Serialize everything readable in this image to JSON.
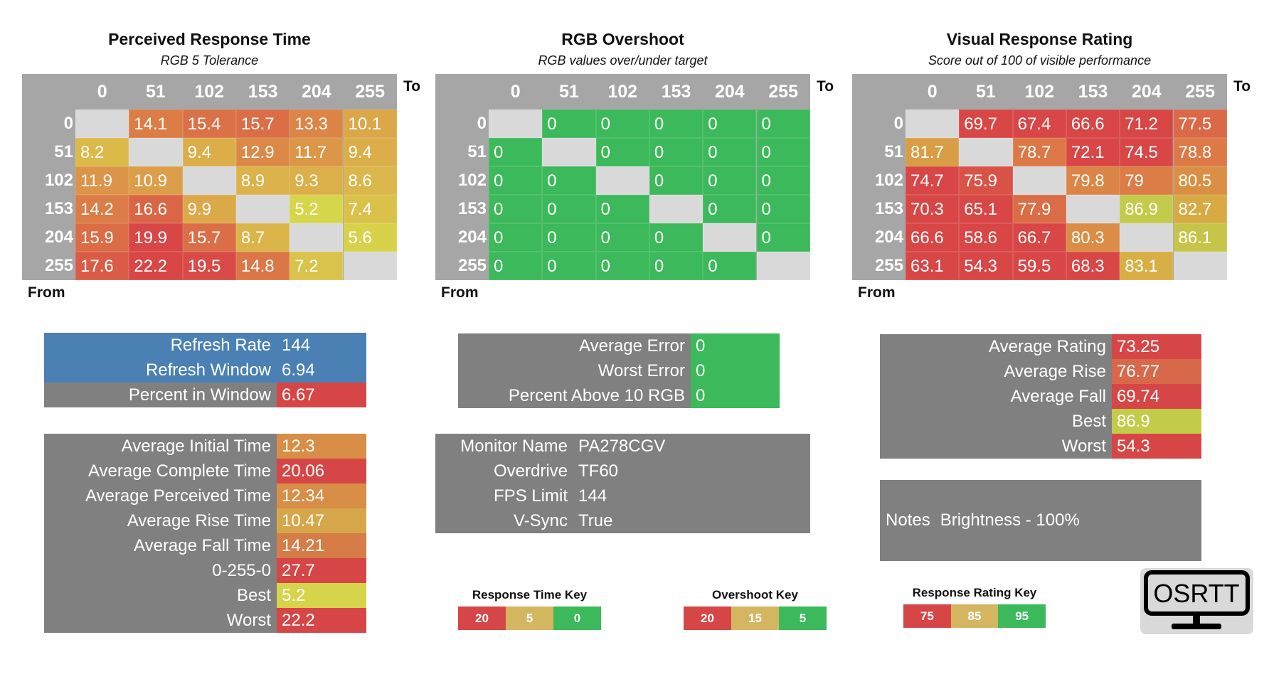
{
  "heatmaps": [
    {
      "id": "response",
      "title": "Perceived Response Time",
      "subtitle": "RGB 5 Tolerance",
      "to_label": "To",
      "from_label": "From",
      "scale": "response",
      "columns": [
        "0",
        "51",
        "102",
        "153",
        "204",
        "255"
      ],
      "rows": [
        "0",
        "51",
        "102",
        "153",
        "204",
        "255"
      ],
      "values": [
        [
          null,
          "14.1",
          "15.4",
          "15.7",
          "13.3",
          "10.1"
        ],
        [
          "8.2",
          null,
          "9.4",
          "12.9",
          "11.7",
          "9.4"
        ],
        [
          "11.9",
          "10.9",
          null,
          "8.9",
          "9.3",
          "8.6"
        ],
        [
          "14.2",
          "16.6",
          "9.9",
          null,
          "5.2",
          "7.4"
        ],
        [
          "15.9",
          "19.9",
          "15.7",
          "8.7",
          null,
          "5.6"
        ],
        [
          "17.6",
          "22.2",
          "19.5",
          "14.8",
          "7.2",
          null
        ]
      ]
    },
    {
      "id": "overshoot",
      "title": "RGB Overshoot",
      "subtitle": "RGB values over/under target",
      "to_label": "To",
      "from_label": "From",
      "scale": "overshoot",
      "columns": [
        "0",
        "51",
        "102",
        "153",
        "204",
        "255"
      ],
      "rows": [
        "0",
        "51",
        "102",
        "153",
        "204",
        "255"
      ],
      "values": [
        [
          null,
          "0",
          "0",
          "0",
          "0",
          "0"
        ],
        [
          "0",
          null,
          "0",
          "0",
          "0",
          "0"
        ],
        [
          "0",
          "0",
          null,
          "0",
          "0",
          "0"
        ],
        [
          "0",
          "0",
          "0",
          null,
          "0",
          "0"
        ],
        [
          "0",
          "0",
          "0",
          "0",
          null,
          "0"
        ],
        [
          "0",
          "0",
          "0",
          "0",
          "0",
          null
        ]
      ]
    },
    {
      "id": "rating",
      "title": "Visual Response Rating",
      "subtitle": "Score out of 100 of visible performance",
      "to_label": "To",
      "from_label": "From",
      "scale": "rating",
      "columns": [
        "0",
        "51",
        "102",
        "153",
        "204",
        "255"
      ],
      "rows": [
        "0",
        "51",
        "102",
        "153",
        "204",
        "255"
      ],
      "values": [
        [
          null,
          "69.7",
          "67.4",
          "66.6",
          "71.2",
          "77.5"
        ],
        [
          "81.7",
          null,
          "78.7",
          "72.1",
          "74.5",
          "78.8"
        ],
        [
          "74.7",
          "75.9",
          null,
          "79.8",
          "79",
          "80.5"
        ],
        [
          "70.3",
          "65.1",
          "77.9",
          null,
          "86.9",
          "82.7"
        ],
        [
          "66.6",
          "58.6",
          "66.7",
          "80.3",
          null,
          "86.1"
        ],
        [
          "63.1",
          "54.3",
          "59.5",
          "68.3",
          "83.1",
          null
        ]
      ]
    }
  ],
  "refresh_stats": [
    {
      "label": "Refresh Rate",
      "value": "144",
      "label_bg": "#4a80b3",
      "value_bg": "#4a80b3"
    },
    {
      "label": "Refresh Window",
      "value": "6.94",
      "label_bg": "#4a80b3",
      "value_bg": "#4a80b3"
    },
    {
      "label": "Percent in Window",
      "value": "6.67",
      "label_bg": "#808080",
      "value_bg": "#d64646"
    }
  ],
  "time_stats": [
    {
      "label": "Average Initial Time",
      "value": "12.3",
      "value_bg": "#d88e46"
    },
    {
      "label": "Average Complete Time",
      "value": "20.06",
      "value_bg": "#d64646"
    },
    {
      "label": "Average Perceived Time",
      "value": "12.34",
      "value_bg": "#d88e46"
    },
    {
      "label": "Average Rise Time",
      "value": "10.47",
      "value_bg": "#d6a64a"
    },
    {
      "label": "Average Fall Time",
      "value": "14.21",
      "value_bg": "#d67c46"
    },
    {
      "label": "0-255-0",
      "value": "27.7",
      "value_bg": "#d64646"
    },
    {
      "label": "Best",
      "value": "5.2",
      "value_bg": "#d6d44a"
    },
    {
      "label": "Worst",
      "value": "22.2",
      "value_bg": "#d64646"
    }
  ],
  "overshoot_stats": [
    {
      "label": "Average Error",
      "value": "0",
      "value_bg": "#3cb95a"
    },
    {
      "label": "Worst Error",
      "value": "0",
      "value_bg": "#3cb95a"
    },
    {
      "label": "Percent Above 10 RGB",
      "value": "0",
      "value_bg": "#3cb95a"
    }
  ],
  "monitor_info": [
    {
      "label": "Monitor Name",
      "value": "PA278CGV"
    },
    {
      "label": "Overdrive",
      "value": "TF60"
    },
    {
      "label": "FPS Limit",
      "value": "144"
    },
    {
      "label": "V-Sync",
      "value": "True"
    }
  ],
  "rating_stats": [
    {
      "label": "Average Rating",
      "value": "73.25",
      "value_bg": "#d64646"
    },
    {
      "label": "Average Rise",
      "value": "76.77",
      "value_bg": "#d8684a"
    },
    {
      "label": "Average Fall",
      "value": "69.74",
      "value_bg": "#d64646"
    },
    {
      "label": "Best",
      "value": "86.9",
      "value_bg": "#c2cc4a"
    },
    {
      "label": "Worst",
      "value": "54.3",
      "value_bg": "#d64646"
    }
  ],
  "notes": {
    "label": "Notes",
    "value": "Brightness - 100%"
  },
  "keys": [
    {
      "title": "Response Time Key",
      "items": [
        {
          "v": "20",
          "c": "#d64646"
        },
        {
          "v": "5",
          "c": "#d5b660"
        },
        {
          "v": "0",
          "c": "#3cb95a"
        }
      ]
    },
    {
      "title": "Overshoot Key",
      "items": [
        {
          "v": "20",
          "c": "#d64646"
        },
        {
          "v": "15",
          "c": "#d5b660"
        },
        {
          "v": "5",
          "c": "#3cb95a"
        }
      ]
    },
    {
      "title": "Response Rating Key",
      "items": [
        {
          "v": "75",
          "c": "#d64646"
        },
        {
          "v": "85",
          "c": "#d5b660"
        },
        {
          "v": "95",
          "c": "#3cb95a"
        }
      ]
    }
  ],
  "logo": {
    "text": "OSRTT"
  }
}
